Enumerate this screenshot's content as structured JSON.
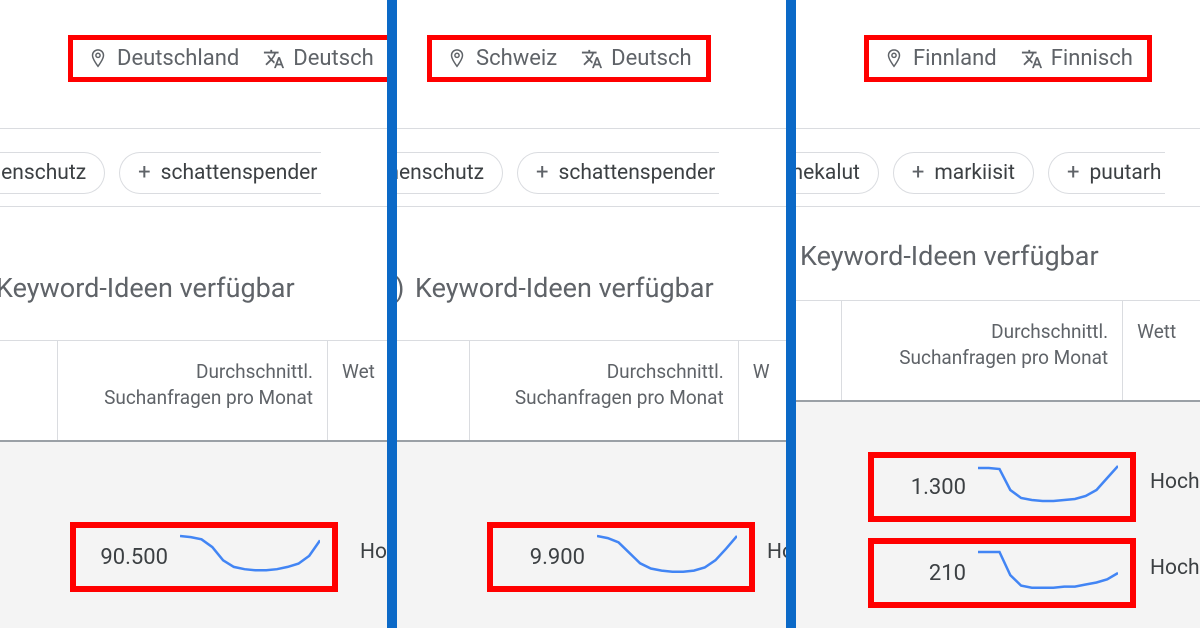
{
  "colors": {
    "highlight": "#ff0000",
    "divider": "#0b69c7",
    "spark": "#4285f4",
    "border": "#dadce0",
    "text": "#3c4043",
    "muted": "#5f6368",
    "rowbg": "#f4f4f4"
  },
  "section_heading": "Keyword-Ideen verfügbar",
  "table": {
    "col_searches_line1": "Durchschnittl.",
    "col_searches_line2": "Suchanfragen pro Monat",
    "col_competition_full": "Wettbewerb",
    "col_competition_p1": "Wet",
    "col_competition_p2": "W",
    "col_competition_p3": "Wett"
  },
  "competition_value": "Hoch",
  "competition_value_short": "Ho",
  "panels": [
    {
      "location": "Deutschland",
      "language": "Deutsch",
      "chips": [
        "onnenschutz",
        "schattenspender"
      ],
      "value": "90.500",
      "spark": [
        38,
        37,
        35,
        28,
        16,
        10,
        8,
        7,
        7,
        8,
        10,
        13,
        20,
        34
      ]
    },
    {
      "location": "Schweiz",
      "language": "Deutsch",
      "chips": [
        "sonnenschutz",
        "schattenspender"
      ],
      "value": "9.900",
      "spark": [
        40,
        38,
        34,
        24,
        14,
        9,
        7,
        6,
        6,
        7,
        10,
        17,
        28,
        40
      ]
    },
    {
      "location": "Finnland",
      "language": "Finnisch",
      "chips": [
        "uonekalut",
        "markiisit",
        "puutarh"
      ],
      "values": [
        {
          "num": "1.300",
          "spark": [
            40,
            40,
            39,
            18,
            10,
            8,
            7,
            7,
            8,
            9,
            12,
            18,
            30,
            42
          ]
        },
        {
          "num": "210",
          "spark": [
            40,
            40,
            40,
            18,
            8,
            6,
            6,
            6,
            7,
            7,
            9,
            11,
            14,
            20
          ]
        }
      ]
    }
  ]
}
